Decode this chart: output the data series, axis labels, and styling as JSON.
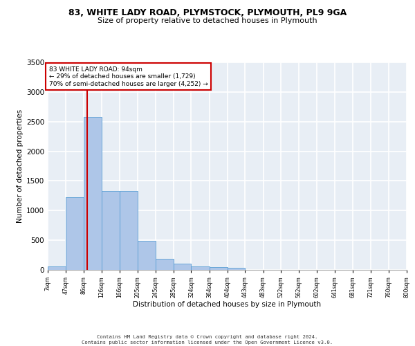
{
  "title1": "83, WHITE LADY ROAD, PLYMSTOCK, PLYMOUTH, PL9 9GA",
  "title2": "Size of property relative to detached houses in Plymouth",
  "xlabel": "Distribution of detached houses by size in Plymouth",
  "ylabel": "Number of detached properties",
  "bin_edges": [
    7,
    47,
    86,
    126,
    166,
    205,
    245,
    285,
    324,
    364,
    404,
    443,
    483,
    522,
    562,
    602,
    641,
    681,
    721,
    760,
    800
  ],
  "bar_heights": [
    60,
    1220,
    2580,
    1330,
    1330,
    490,
    185,
    105,
    55,
    45,
    30,
    0,
    0,
    0,
    0,
    0,
    0,
    0,
    0,
    0
  ],
  "bar_color": "#aec6e8",
  "bar_edgecolor": "#5a9fd4",
  "property_size": 94,
  "vline_color": "#cc0000",
  "annotation_line1": "83 WHITE LADY ROAD: 94sqm",
  "annotation_line2": "← 29% of detached houses are smaller (1,729)",
  "annotation_line3": "70% of semi-detached houses are larger (4,252) →",
  "annotation_box_color": "#cc0000",
  "annotation_text_color": "#000000",
  "ylim": [
    0,
    3500
  ],
  "yticks": [
    0,
    500,
    1000,
    1500,
    2000,
    2500,
    3000,
    3500
  ],
  "background_color": "#e8eef5",
  "grid_color": "#ffffff",
  "footer1": "Contains HM Land Registry data © Crown copyright and database right 2024.",
  "footer2": "Contains public sector information licensed under the Open Government Licence v3.0."
}
